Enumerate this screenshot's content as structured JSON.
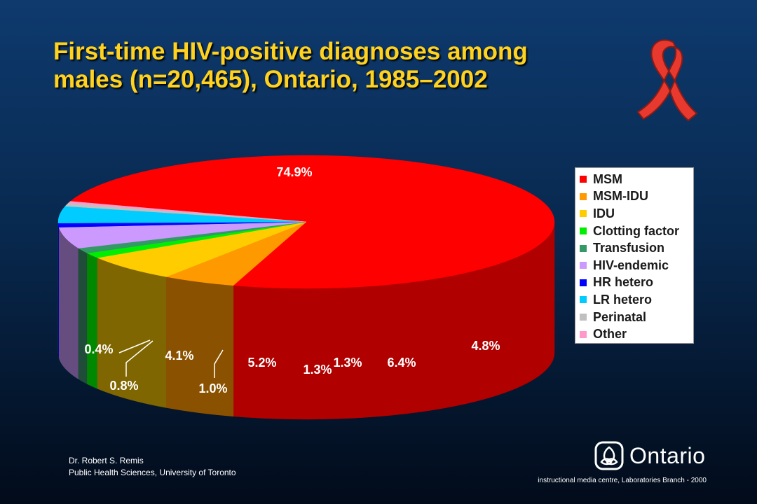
{
  "slide": {
    "title_line1": "First-time HIV-positive diagnoses among",
    "title_line2": "males (n=20,465), Ontario, 1985–2002",
    "author_line1": "Dr. Robert S. Remis",
    "author_line2": "Public Health Sciences, University of Toronto",
    "credit": "instructional media centre, Laboratories Branch - 2000",
    "logo_text": "Ontario",
    "ribbon_icon": "red-ribbon-icon",
    "logo_icon": "ontario-trillium-icon"
  },
  "chart_data": {
    "type": "pie",
    "title": "First-time HIV-positive diagnoses among males (n=20,465), Ontario, 1985–2002",
    "style": "3d",
    "legend_placement": "right",
    "series": [
      {
        "name": "MSM",
        "value": 74.9,
        "label": "74.9%",
        "color": "#ff0000",
        "side_color": "#b00000"
      },
      {
        "name": "MSM-IDU",
        "value": 4.8,
        "label": "4.8%",
        "color": "#ff9900",
        "side_color": "#8a5200"
      },
      {
        "name": "IDU",
        "value": 6.4,
        "label": "6.4%",
        "color": "#ffcc00",
        "side_color": "#806600"
      },
      {
        "name": "Clotting factor",
        "value": 1.3,
        "label": "1.3%",
        "color": "#00ee00",
        "side_color": "#008800"
      },
      {
        "name": "Transfusion",
        "value": 1.3,
        "label": "1.3%",
        "color": "#339966",
        "side_color": "#1f4d3a"
      },
      {
        "name": "HIV-endemic",
        "value": 5.2,
        "label": "5.2%",
        "color": "#cc99ff",
        "side_color": "#664d80"
      },
      {
        "name": "HR hetero",
        "value": 1.0,
        "label": "1.0%",
        "color": "#0000ff",
        "side_color": "#000088"
      },
      {
        "name": "LR hetero",
        "value": 4.1,
        "label": "4.1%",
        "color": "#00ccff",
        "side_color": "#006680"
      },
      {
        "name": "Perinatal",
        "value": 0.8,
        "label": "0.8%",
        "color": "#c0c0c0",
        "side_color": "#707070"
      },
      {
        "name": "Other",
        "value": 0.4,
        "label": "0.4%",
        "color": "#ff99cc",
        "side_color": "#804d66"
      }
    ]
  }
}
